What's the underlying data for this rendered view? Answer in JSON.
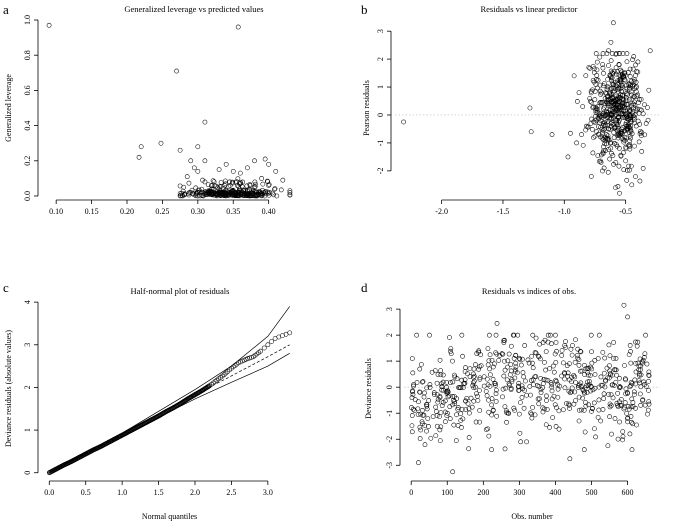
{
  "chart_data": [
    {
      "panel": "a",
      "type": "scatter",
      "title": "Generalized leverage vs predicted values",
      "xlabel": "",
      "ylabel": "Generalized leverage",
      "xlim": [
        0.08,
        0.44
      ],
      "ylim": [
        0.0,
        1.0
      ],
      "xticks": [
        "0.10",
        "0.15",
        "0.20",
        "0.25",
        "0.30",
        "0.35",
        "0.40"
      ],
      "xtick_values": [
        0.1,
        0.15,
        0.2,
        0.25,
        0.3,
        0.35,
        0.4
      ],
      "yticks": [
        "0.0",
        "0.2",
        "0.4",
        "0.6",
        "0.8",
        "1.0"
      ],
      "ytick_values": [
        0.0,
        0.2,
        0.4,
        0.6,
        0.8,
        1.0
      ],
      "grid": false,
      "points": [
        [
          0.09,
          0.97
        ],
        [
          0.357,
          0.96
        ],
        [
          0.27,
          0.71
        ],
        [
          0.31,
          0.42
        ],
        [
          0.248,
          0.3
        ],
        [
          0.22,
          0.28
        ],
        [
          0.3,
          0.28
        ],
        [
          0.217,
          0.22
        ],
        [
          0.275,
          0.26
        ],
        [
          0.31,
          0.2
        ],
        [
          0.29,
          0.2
        ],
        [
          0.295,
          0.16
        ],
        [
          0.3,
          0.14
        ],
        [
          0.285,
          0.11
        ],
        [
          0.34,
          0.18
        ],
        [
          0.38,
          0.2
        ],
        [
          0.395,
          0.21
        ],
        [
          0.37,
          0.16
        ],
        [
          0.4,
          0.18
        ],
        [
          0.36,
          0.13
        ],
        [
          0.35,
          0.14
        ],
        [
          0.33,
          0.15
        ],
        [
          0.41,
          0.14
        ],
        [
          0.42,
          0.09
        ],
        [
          0.43,
          0.03
        ],
        [
          0.28,
          0.05
        ],
        [
          0.32,
          0.06
        ],
        [
          0.345,
          0.08
        ],
        [
          0.39,
          0.1
        ],
        [
          0.36,
          0.07
        ],
        [
          0.31,
          0.08
        ],
        [
          0.38,
          0.05
        ],
        [
          0.4,
          0.06
        ],
        [
          0.33,
          0.04
        ],
        [
          0.37,
          0.03
        ],
        [
          0.29,
          0.02
        ]
      ],
      "cluster": {
        "x": [
          0.275,
          0.43
        ],
        "y": [
          0.0,
          0.08
        ],
        "n": 300
      },
      "reference_line": null
    },
    {
      "panel": "b",
      "type": "scatter",
      "title": "Residuals vs linear predictor",
      "xlabel": "",
      "ylabel": "Pearson residuals",
      "xlim": [
        -2.38,
        -0.22
      ],
      "ylim": [
        -2.9,
        3.4
      ],
      "xticks": [
        "-2.0",
        "-1.5",
        "-1.0",
        "-0.5"
      ],
      "xtick_values": [
        -2.0,
        -1.5,
        -1.0,
        -0.5
      ],
      "yticks": [
        "-2",
        "-1",
        "0",
        "1",
        "2",
        "3"
      ],
      "ytick_values": [
        -2,
        -1,
        0,
        1,
        2,
        3
      ],
      "grid": false,
      "reference_line": {
        "y": 0,
        "style": "dotted"
      },
      "points": [
        [
          -2.31,
          -0.25
        ],
        [
          -1.28,
          0.25
        ],
        [
          -1.27,
          -0.6
        ],
        [
          -1.1,
          -0.7
        ],
        [
          -0.97,
          -1.5
        ],
        [
          -0.6,
          3.3
        ],
        [
          -0.92,
          1.4
        ],
        [
          -0.9,
          -1.0
        ],
        [
          -0.88,
          0.8
        ],
        [
          -0.85,
          0.3
        ],
        [
          -0.82,
          -0.4
        ],
        [
          -0.8,
          1.7
        ],
        [
          -0.78,
          -2.2
        ],
        [
          -0.77,
          0.9
        ],
        [
          -0.62,
          2.6
        ],
        [
          -0.64,
          2.3
        ],
        [
          -0.3,
          2.3
        ],
        [
          -0.45,
          -2.5
        ],
        [
          -0.55,
          -2.8
        ],
        [
          -0.4,
          1.9
        ]
      ],
      "cluster": {
        "x": [
          -0.95,
          -0.26
        ],
        "y": [
          -2.6,
          2.2
        ],
        "n": 520
      }
    },
    {
      "panel": "c",
      "type": "line",
      "title": "Half-normal plot of residuals",
      "xlabel": "Normal quantiles",
      "ylabel": "Deviance residuals (absolute values)",
      "xlim": [
        -0.1,
        3.4
      ],
      "ylim": [
        -0.1,
        4.05
      ],
      "xticks": [
        "0.0",
        "0.5",
        "1.0",
        "1.5",
        "2.0",
        "2.5",
        "3.0"
      ],
      "xtick_values": [
        0.0,
        0.5,
        1.0,
        1.5,
        2.0,
        2.5,
        3.0
      ],
      "yticks": [
        "0",
        "1",
        "2",
        "3",
        "4"
      ],
      "ytick_values": [
        0,
        1,
        2,
        3,
        4
      ],
      "grid": false,
      "series": [
        {
          "name": "observed",
          "style": "points",
          "x": [
            0.0,
            0.1,
            0.2,
            0.3,
            0.4,
            0.5,
            0.6,
            0.7,
            0.8,
            0.9,
            1.0,
            1.1,
            1.2,
            1.3,
            1.4,
            1.5,
            1.6,
            1.7,
            1.8,
            1.9,
            2.0,
            2.1,
            2.2,
            2.3,
            2.4,
            2.5,
            2.6,
            2.7,
            2.8,
            2.9,
            3.1,
            3.3
          ],
          "y": [
            0.0,
            0.09,
            0.18,
            0.26,
            0.35,
            0.44,
            0.53,
            0.61,
            0.7,
            0.79,
            0.88,
            0.97,
            1.06,
            1.15,
            1.24,
            1.33,
            1.43,
            1.52,
            1.62,
            1.73,
            1.83,
            1.93,
            2.04,
            2.17,
            2.3,
            2.45,
            2.58,
            2.66,
            2.72,
            2.85,
            3.15,
            3.28
          ]
        },
        {
          "name": "envelope-upper",
          "style": "solid",
          "x": [
            0.0,
            1.0,
            2.0,
            2.5,
            3.0,
            3.3
          ],
          "y": [
            0.0,
            0.93,
            1.95,
            2.5,
            3.2,
            3.9
          ]
        },
        {
          "name": "envelope-median",
          "style": "dashed",
          "x": [
            0.0,
            1.0,
            2.0,
            2.5,
            3.0,
            3.3
          ],
          "y": [
            0.0,
            0.9,
            1.83,
            2.27,
            2.72,
            3.0
          ]
        },
        {
          "name": "envelope-lower",
          "style": "solid",
          "x": [
            0.0,
            1.0,
            2.0,
            2.5,
            3.0,
            3.3
          ],
          "y": [
            0.0,
            0.87,
            1.73,
            2.12,
            2.5,
            2.8
          ]
        }
      ]
    },
    {
      "panel": "d",
      "type": "scatter",
      "title": "Residuals vs indices of obs.",
      "xlabel": "Obs. number",
      "ylabel": "Deviance residuals",
      "xlim": [
        -20,
        690
      ],
      "ylim": [
        -3.45,
        3.35
      ],
      "xticks": [
        "0",
        "100",
        "200",
        "300",
        "400",
        "500",
        "600"
      ],
      "xtick_values": [
        0,
        100,
        200,
        300,
        400,
        500,
        600
      ],
      "yticks": [
        "-3",
        "-2",
        "-1",
        "0",
        "1",
        "2",
        "3"
      ],
      "ytick_values": [
        -3,
        -2,
        -1,
        0,
        1,
        2,
        3
      ],
      "grid": false,
      "reference_line": {
        "y": 0,
        "style": "dotted"
      },
      "points": [
        [
          590,
          3.15
        ],
        [
          115,
          -3.25
        ],
        [
          238,
          2.45
        ],
        [
          20,
          -2.9
        ],
        [
          440,
          -2.75
        ],
        [
          600,
          2.7
        ],
        [
          650,
          2.0
        ],
        [
          380,
          2.0
        ],
        [
          320,
          -2.1
        ],
        [
          480,
          -2.4
        ]
      ],
      "cluster": {
        "x": [
          0,
          660
        ],
        "y": [
          -2.4,
          2.0
        ],
        "n": 620
      }
    }
  ]
}
